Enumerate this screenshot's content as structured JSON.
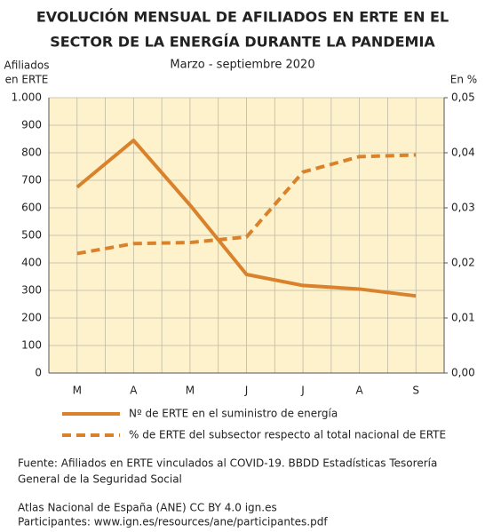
{
  "chart_data": {
    "type": "line",
    "title": [
      "EVOLUCIÓN MENSUAL DE AFILIADOS EN ERTE EN EL",
      "SECTOR DE LA ENERGÍA DURANTE LA PANDEMIA"
    ],
    "subtitle": "Marzo - septiembre 2020",
    "y_label": [
      "Afiliados",
      "en ERTE"
    ],
    "y2_label": "En %",
    "categories": [
      "M",
      "A",
      "M",
      "J",
      "J",
      "A",
      "S"
    ],
    "series": [
      {
        "name": "Nº de ERTE en el suministro de energía",
        "color": "#d9822b",
        "values": [
          675,
          845,
          610,
          358,
          318,
          305,
          280
        ]
      },
      {
        "name": "% de ERTE del subsector respecto al total nacional de ERTE",
        "color": "#d9822b",
        "axis": "y2",
        "dashed": true,
        "values": [
          0.0217,
          0.0235,
          0.0237,
          0.0247,
          0.0365,
          0.0393,
          0.0396
        ]
      }
    ],
    "ylim": [
      0,
      1000
    ],
    "yticks": [
      0,
      100,
      200,
      300,
      400,
      500,
      600,
      700,
      800,
      900,
      {
        "value": 1000,
        "label": "1.000"
      }
    ],
    "y2lim": [
      0,
      0.05
    ],
    "y2ticks": [
      {
        "value": 0,
        "label": "0,00"
      },
      {
        "value": 0.01,
        "label": "0,01"
      },
      {
        "value": 0.02,
        "label": "0,02"
      },
      {
        "value": 0.03,
        "label": "0,03"
      },
      {
        "value": 0.04,
        "label": "0,04"
      },
      {
        "value": 0.05,
        "label": "0,05"
      }
    ],
    "grid": true,
    "notes": [
      "Fuente: Afiliados en ERTE vinculados al COVID-19. BBDD Estadísticas Tesorería",
      "General de la Seguridad Social",
      "Atlas Nacional de España (ANE) CC BY 4.0 ign.es",
      "Participantes: www.ign.es/resources/ane/participantes.pdf"
    ]
  }
}
